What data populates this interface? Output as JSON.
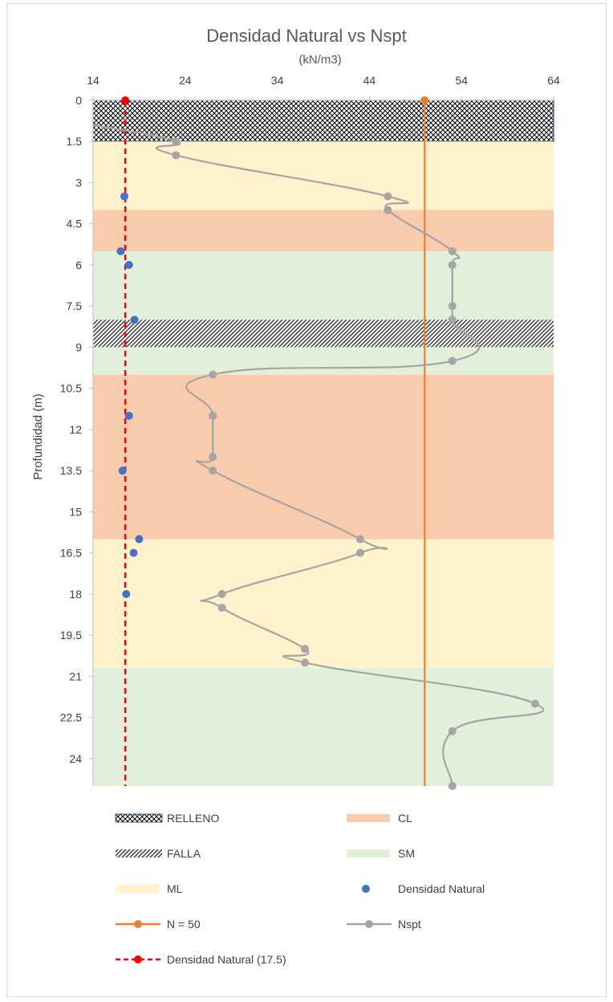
{
  "chart_data": {
    "type": "scatter",
    "title": "Densidad Natural vs Nspt",
    "subtitle": "(kN/m3)",
    "ylabel": "Profundidad (m)",
    "xlim": [
      14,
      64
    ],
    "ylim": [
      0,
      25
    ],
    "y_inverted": true,
    "x_ticks": [
      "14",
      "24",
      "34",
      "44",
      "54",
      "64"
    ],
    "y_ticks": [
      "0",
      "1.5",
      "3",
      "4.5",
      "6",
      "7.5",
      "9",
      "10.5",
      "12",
      "13.5",
      "15",
      "16.5",
      "18",
      "19.5",
      "21",
      "22.5",
      "24"
    ],
    "x_axis_position": "top",
    "layers": [
      {
        "name": "RELLENO",
        "from": 0,
        "to": 1.5,
        "pattern": "crosshatch",
        "color": "#000000"
      },
      {
        "name": "ML",
        "from": 1.5,
        "to": 4.0,
        "color": "#fff2cc"
      },
      {
        "name": "CL",
        "from": 4.0,
        "to": 5.5,
        "color": "#f8cbad"
      },
      {
        "name": "SM",
        "from": 5.5,
        "to": 8.0,
        "color": "#e2efda"
      },
      {
        "name": "FALLA",
        "from": 8.0,
        "to": 9.0,
        "pattern": "diagonal",
        "color": "#000000"
      },
      {
        "name": "SM",
        "from": 9.0,
        "to": 10.0,
        "color": "#e2efda"
      },
      {
        "name": "CL",
        "from": 10.0,
        "to": 16.0,
        "color": "#f8cbad"
      },
      {
        "name": "ML",
        "from": 16.0,
        "to": 20.7,
        "color": "#fff2cc"
      },
      {
        "name": "SM",
        "from": 20.7,
        "to": 25,
        "color": "#e2efda"
      }
    ],
    "series": [
      {
        "name": "Densidad Natural",
        "kind": "scatter",
        "color": "#4472c4",
        "points": [
          {
            "x": 17.4,
            "y": 3.5
          },
          {
            "x": 17.0,
            "y": 5.5
          },
          {
            "x": 17.9,
            "y": 6.0
          },
          {
            "x": 18.5,
            "y": 8.0
          },
          {
            "x": 17.9,
            "y": 11.5
          },
          {
            "x": 17.2,
            "y": 13.5
          },
          {
            "x": 19.0,
            "y": 16.0
          },
          {
            "x": 18.4,
            "y": 16.5
          },
          {
            "x": 17.6,
            "y": 18.0
          }
        ]
      },
      {
        "name": "Nspt",
        "kind": "line",
        "color": "#a5a5a5",
        "points": [
          {
            "x": 14,
            "y": 0.9
          },
          {
            "x": 23,
            "y": 1.5
          },
          {
            "x": 23,
            "y": 2.0
          },
          {
            "x": 46,
            "y": 3.5
          },
          {
            "x": 46,
            "y": 4.0
          },
          {
            "x": 53,
            "y": 5.5
          },
          {
            "x": 53,
            "y": 6.0
          },
          {
            "x": 53,
            "y": 7.5
          },
          {
            "x": 53,
            "y": 8.0
          },
          {
            "x": 53,
            "y": 9.5
          },
          {
            "x": 27,
            "y": 10.0
          },
          {
            "x": 27,
            "y": 11.5
          },
          {
            "x": 27,
            "y": 13.0
          },
          {
            "x": 27,
            "y": 13.5
          },
          {
            "x": 43,
            "y": 16.0
          },
          {
            "x": 43,
            "y": 16.5
          },
          {
            "x": 28,
            "y": 18.0
          },
          {
            "x": 28,
            "y": 18.5
          },
          {
            "x": 37,
            "y": 20.0
          },
          {
            "x": 37,
            "y": 20.5
          },
          {
            "x": 62,
            "y": 22.0
          },
          {
            "x": 53,
            "y": 23.0
          },
          {
            "x": 53,
            "y": 25.0
          }
        ]
      },
      {
        "name": "N = 50",
        "kind": "vline",
        "color": "#ed7d31",
        "x": 50
      },
      {
        "name": "Densidad Natural (17.5)",
        "kind": "vline-dashed",
        "color": "#ff0000",
        "x": 17.5
      }
    ],
    "legend": [
      {
        "label": "RELLENO",
        "kind": "crosshatch"
      },
      {
        "label": "CL",
        "kind": "fill",
        "color": "#f8cbad"
      },
      {
        "label": "FALLA",
        "kind": "diagonal"
      },
      {
        "label": "SM",
        "kind": "fill",
        "color": "#e2efda"
      },
      {
        "label": "ML",
        "kind": "fill",
        "color": "#fff2cc"
      },
      {
        "label": "Densidad Natural",
        "kind": "dot",
        "color": "#4472c4"
      },
      {
        "label": "N = 50",
        "kind": "line-marker",
        "color": "#ed7d31"
      },
      {
        "label": "Nspt",
        "kind": "line-marker",
        "color": "#a5a5a5"
      },
      {
        "label": "Densidad Natural (17.5)",
        "kind": "dashed-marker",
        "color": "#ff0000"
      }
    ],
    "legend_position": "bottom"
  }
}
